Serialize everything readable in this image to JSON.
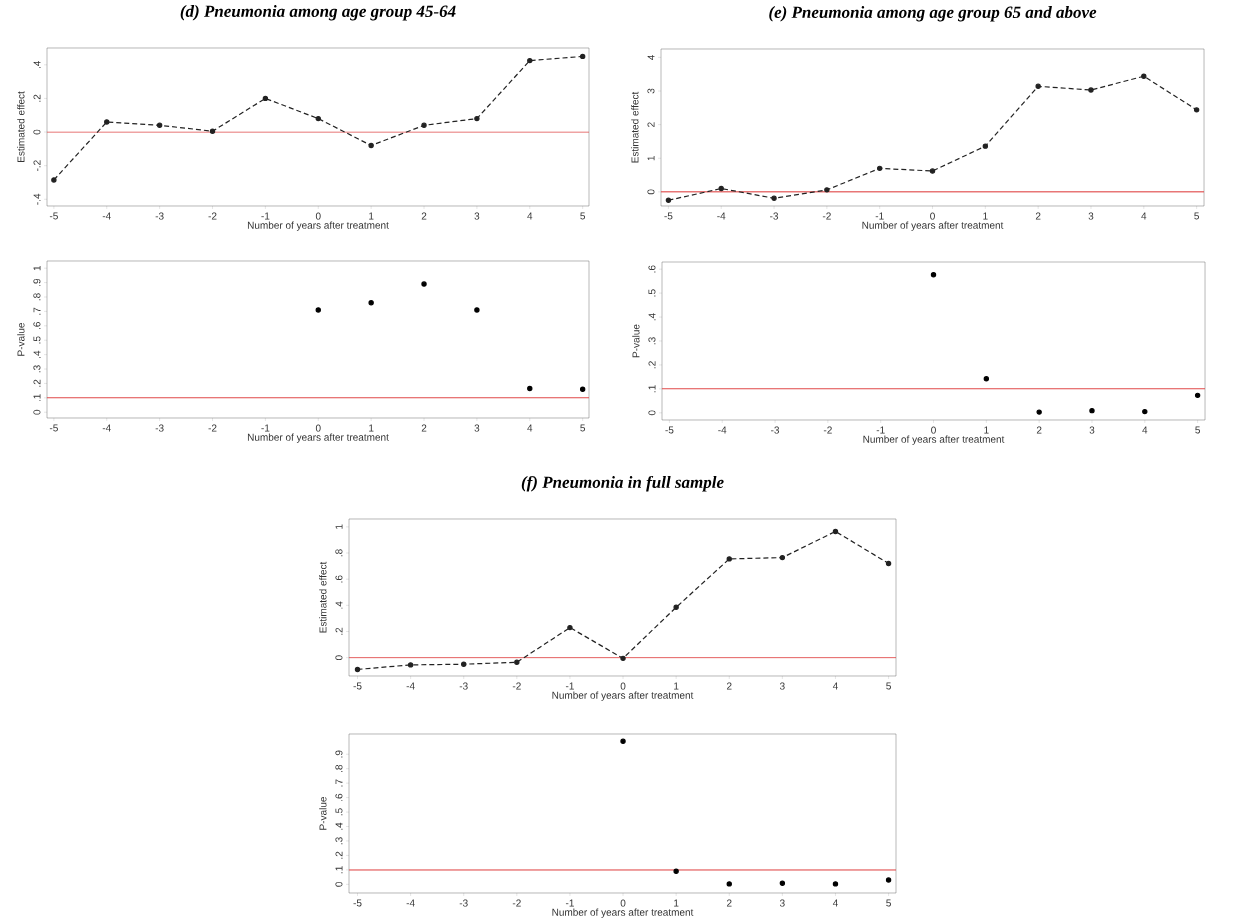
{
  "chart_data": [
    {
      "type": "line",
      "title": "(d) Pneumonia among age group 45-64",
      "xlabel": "Number of years after treatment",
      "ylabel": "Estimated effect",
      "marker": "circle",
      "line_style": "dashed",
      "color": "#222222",
      "x": [
        -5,
        -4,
        -3,
        -2,
        -1,
        0,
        1,
        2,
        3,
        4,
        5
      ],
      "values": [
        -0.285,
        0.06,
        0.04,
        0.005,
        0.2,
        0.08,
        -0.08,
        0.04,
        0.08,
        0.425,
        0.45
      ],
      "xlim": [
        -5.13,
        5.12
      ],
      "ylim": [
        -0.44,
        0.5
      ],
      "xticks": [
        -5,
        -4,
        -3,
        -2,
        -1,
        0,
        1,
        2,
        3,
        4,
        5
      ],
      "yticks": [
        {
          "value": -0.4,
          "label": "-.4"
        },
        {
          "value": -0.2,
          "label": "-.2"
        },
        0,
        {
          "value": 0.2,
          "label": ".2"
        },
        {
          "value": 0.4,
          "label": ".4"
        }
      ],
      "ref_lines": [
        {
          "axis": "y",
          "value": 0,
          "color": "#e04848"
        }
      ]
    },
    {
      "type": "line",
      "title": "(e) Pneumonia among age group 65 and above",
      "xlabel": "Number of years after treatment",
      "ylabel": "Estimated effect",
      "marker": "circle",
      "line_style": "dashed",
      "color": "#222222",
      "x": [
        -5,
        -4,
        -3,
        -2,
        -1,
        0,
        1,
        2,
        3,
        4,
        5
      ],
      "values": [
        -0.25,
        0.1,
        -0.19,
        0.06,
        0.7,
        0.62,
        1.36,
        3.14,
        3.03,
        3.44,
        2.44
      ],
      "xlim": [
        -5.14,
        5.14
      ],
      "ylim": [
        -0.42,
        4.25
      ],
      "xticks": [
        -5,
        -4,
        -3,
        -2,
        -1,
        0,
        1,
        2,
        3,
        4,
        5
      ],
      "yticks": [
        0,
        1,
        2,
        3,
        4
      ],
      "ref_lines": [
        {
          "axis": "y",
          "value": 0,
          "color": "#e04848"
        }
      ]
    },
    {
      "type": "scatter",
      "xlabel": "Number of years after treatment",
      "ylabel": "P-value",
      "marker": "circle",
      "color": "#000000",
      "x": [
        0,
        1,
        2,
        3,
        4,
        5
      ],
      "values": [
        0.71,
        0.76,
        0.89,
        0.71,
        0.165,
        0.16
      ],
      "xlim": [
        -5.13,
        5.12
      ],
      "ylim": [
        -0.04,
        1.05
      ],
      "xticks": [
        -5,
        -4,
        -3,
        -2,
        -1,
        0,
        1,
        2,
        3,
        4,
        5
      ],
      "yticks": [
        0,
        {
          "value": 0.1,
          "label": ".1"
        },
        {
          "value": 0.2,
          "label": ".2"
        },
        {
          "value": 0.3,
          "label": ".3"
        },
        {
          "value": 0.4,
          "label": ".4"
        },
        {
          "value": 0.5,
          "label": ".5"
        },
        {
          "value": 0.6,
          "label": ".6"
        },
        {
          "value": 0.7,
          "label": ".7"
        },
        {
          "value": 0.8,
          "label": ".8"
        },
        {
          "value": 0.9,
          "label": ".9"
        },
        1
      ],
      "ref_lines": [
        {
          "axis": "y",
          "value": 0.1,
          "color": "#e04848"
        }
      ]
    },
    {
      "type": "scatter",
      "xlabel": "Number of years after treatment",
      "ylabel": "P-value",
      "marker": "circle",
      "color": "#000000",
      "x": [
        0,
        1,
        2,
        3,
        4,
        5
      ],
      "values": [
        0.577,
        0.142,
        0.003,
        0.009,
        0.005,
        0.073
      ],
      "xlim": [
        -5.14,
        5.14
      ],
      "ylim": [
        -0.03,
        0.63
      ],
      "xticks": [
        -5,
        -4,
        -3,
        -2,
        -1,
        0,
        1,
        2,
        3,
        4,
        5
      ],
      "yticks": [
        0,
        {
          "value": 0.1,
          "label": ".1"
        },
        {
          "value": 0.2,
          "label": ".2"
        },
        {
          "value": 0.3,
          "label": ".3"
        },
        {
          "value": 0.4,
          "label": ".4"
        },
        {
          "value": 0.5,
          "label": ".5"
        },
        {
          "value": 0.6,
          "label": ".6"
        }
      ],
      "ref_lines": [
        {
          "axis": "y",
          "value": 0.1,
          "color": "#e04848"
        }
      ]
    },
    {
      "type": "line",
      "title": "(f) Pneumonia in full sample",
      "xlabel": "Number of years after treatment",
      "ylabel": "Estimated effect",
      "marker": "circle",
      "line_style": "dashed",
      "color": "#222222",
      "x": [
        -5,
        -4,
        -3,
        -2,
        -1,
        0,
        1,
        2,
        3,
        4,
        5
      ],
      "values": [
        -0.09,
        -0.055,
        -0.05,
        -0.035,
        0.23,
        -0.005,
        0.385,
        0.755,
        0.765,
        0.965,
        0.72
      ],
      "xlim": [
        -5.16,
        5.14
      ],
      "ylim": [
        -0.14,
        1.06
      ],
      "xticks": [
        -5,
        -4,
        -3,
        -2,
        -1,
        0,
        1,
        2,
        3,
        4,
        5
      ],
      "yticks": [
        0,
        {
          "value": 0.2,
          "label": ".2"
        },
        {
          "value": 0.4,
          "label": ".4"
        },
        {
          "value": 0.6,
          "label": ".6"
        },
        {
          "value": 0.8,
          "label": ".8"
        },
        1
      ],
      "ref_lines": [
        {
          "axis": "y",
          "value": 0,
          "color": "#e04848"
        }
      ]
    },
    {
      "type": "scatter",
      "xlabel": "Number of years after treatment",
      "ylabel": "P-value",
      "marker": "circle",
      "color": "#000000",
      "x": [
        0,
        1,
        2,
        3,
        4,
        5
      ],
      "values": [
        0.99,
        0.09,
        0.003,
        0.007,
        0.003,
        0.03
      ],
      "xlim": [
        -5.16,
        5.14
      ],
      "ylim": [
        -0.06,
        1.04
      ],
      "xticks": [
        -5,
        -4,
        -3,
        -2,
        -1,
        0,
        1,
        2,
        3,
        4,
        5
      ],
      "yticks": [
        0,
        {
          "value": 0.1,
          "label": ".1"
        },
        {
          "value": 0.2,
          "label": ".2"
        },
        {
          "value": 0.3,
          "label": ".3"
        },
        {
          "value": 0.4,
          "label": ".4"
        },
        {
          "value": 0.5,
          "label": ".5"
        },
        {
          "value": 0.6,
          "label": ".6"
        },
        {
          "value": 0.7,
          "label": ".7"
        },
        {
          "value": 0.8,
          "label": ".8"
        },
        {
          "value": 0.9,
          "label": ".9"
        }
      ],
      "ref_lines": [
        {
          "axis": "y",
          "value": 0.1,
          "color": "#e04848"
        }
      ]
    }
  ]
}
